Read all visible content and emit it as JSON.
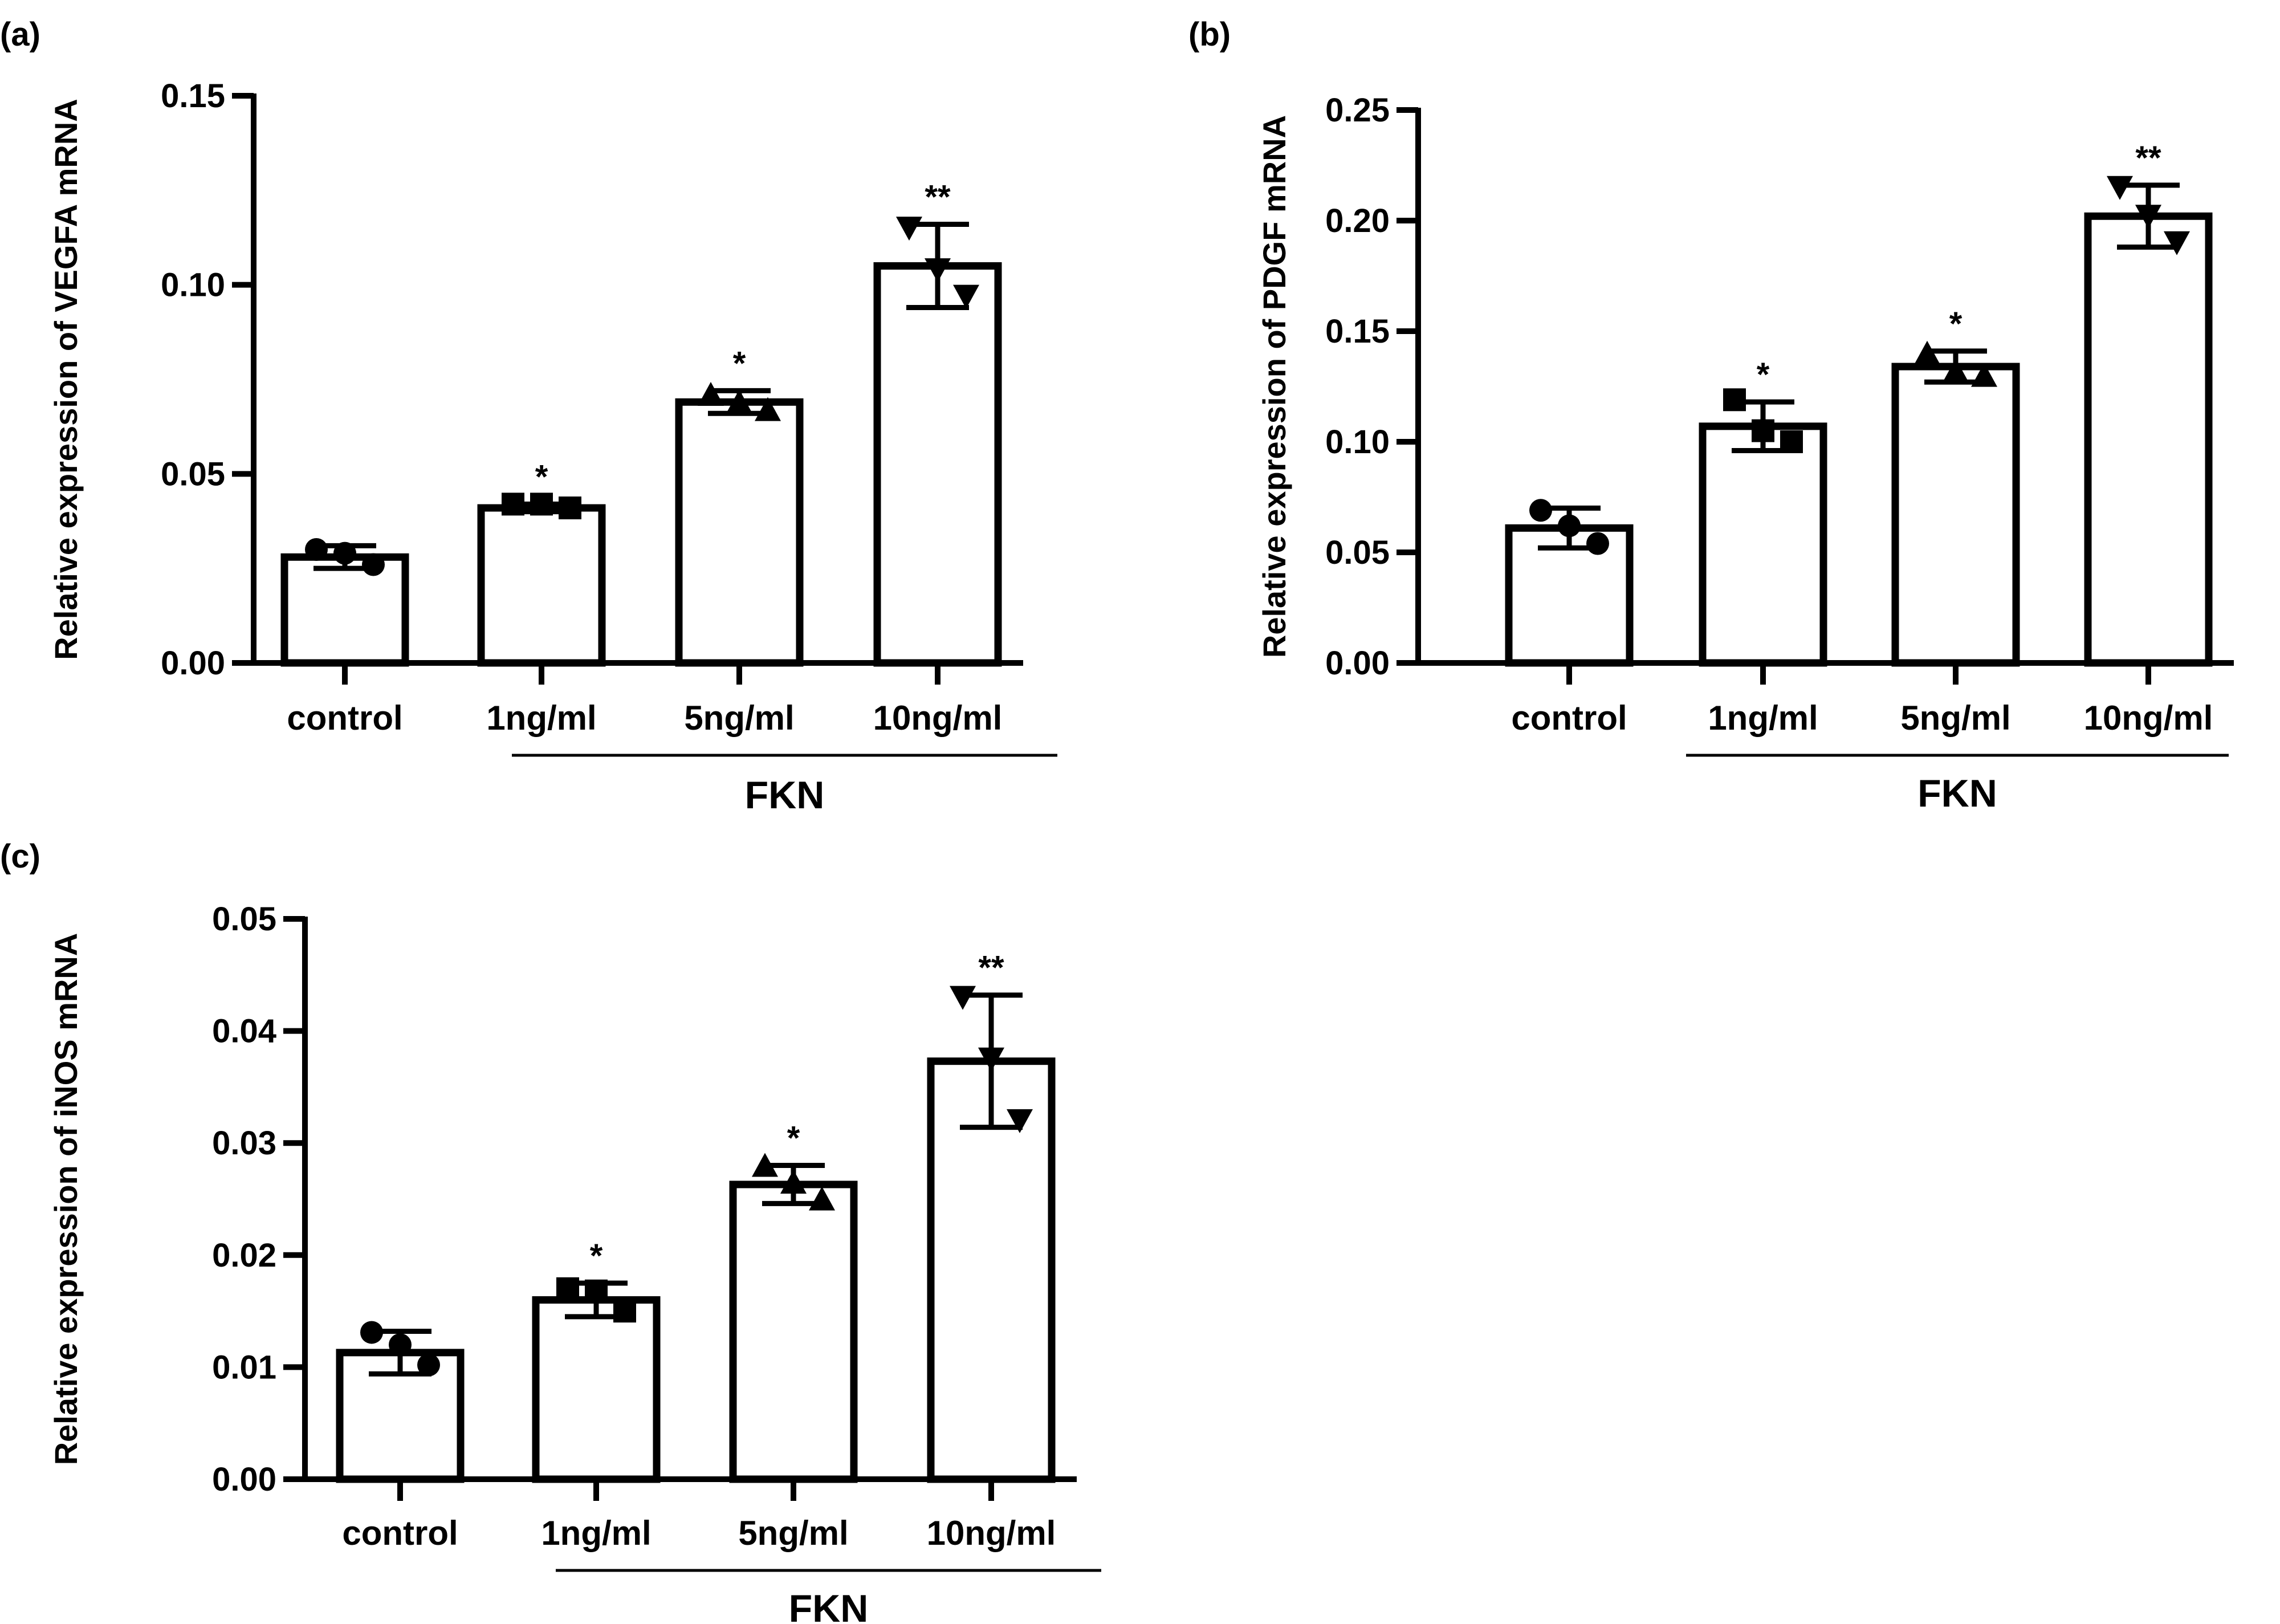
{
  "chart_data": [
    {
      "panel": "(a)",
      "type": "bar",
      "ylabel": "Relative expression of VEGFA mRNA",
      "categories": [
        "control",
        "1ng/ml",
        "5ng/ml",
        "10ng/ml"
      ],
      "group_label": "FKN",
      "yticks": [
        "0.00",
        "0.05",
        "0.10",
        "0.15"
      ],
      "ylim": [
        0,
        0.15
      ],
      "values": [
        0.028,
        0.041,
        0.069,
        0.105
      ],
      "errors": [
        0.003,
        0.001,
        0.003,
        0.011
      ],
      "points": [
        [
          0.03,
          0.029,
          0.026
        ],
        [
          0.042,
          0.042,
          0.041
        ],
        [
          0.071,
          0.069,
          0.067
        ],
        [
          0.115,
          0.104,
          0.097
        ]
      ],
      "markers": [
        "circle",
        "square",
        "triangle",
        "triangle-down"
      ],
      "significance": [
        "",
        "*",
        "*",
        "**"
      ]
    },
    {
      "panel": "(b)",
      "type": "bar",
      "ylabel": "Relative expression of PDGF mRNA",
      "categories": [
        "control",
        "1ng/ml",
        "5ng/ml",
        "10ng/ml"
      ],
      "group_label": "FKN",
      "yticks": [
        "0.00",
        "0.05",
        "0.10",
        "0.15",
        "0.20",
        "0.25"
      ],
      "ylim": [
        0,
        0.25
      ],
      "values": [
        0.061,
        0.107,
        0.134,
        0.202
      ],
      "errors": [
        0.009,
        0.011,
        0.007,
        0.014
      ],
      "points": [
        [
          0.069,
          0.062,
          0.054
        ],
        [
          0.119,
          0.105,
          0.1
        ],
        [
          0.14,
          0.132,
          0.13
        ],
        [
          0.215,
          0.202,
          0.19
        ]
      ],
      "markers": [
        "circle",
        "square",
        "triangle",
        "triangle-down"
      ],
      "significance": [
        "",
        "*",
        "*",
        "**"
      ]
    },
    {
      "panel": "(c)",
      "type": "bar",
      "ylabel": "Relative expression of iNOS mRNA",
      "categories": [
        "control",
        "1ng/ml",
        "5ng/ml",
        "10ng/ml"
      ],
      "group_label": "FKN",
      "yticks": [
        "0.00",
        "0.01",
        "0.02",
        "0.03",
        "0.04",
        "0.05"
      ],
      "ylim": [
        0,
        0.05
      ],
      "values": [
        0.0113,
        0.016,
        0.0263,
        0.0373
      ],
      "errors": [
        0.0019,
        0.0015,
        0.0017,
        0.0059
      ],
      "points": [
        [
          0.0131,
          0.012,
          0.0102
        ],
        [
          0.017,
          0.0168,
          0.015
        ],
        [
          0.028,
          0.0265,
          0.025
        ],
        [
          0.043,
          0.0375,
          0.032
        ]
      ],
      "markers": [
        "circle",
        "square",
        "triangle",
        "triangle-down"
      ],
      "significance": [
        "",
        "*",
        "*",
        "**"
      ]
    }
  ]
}
